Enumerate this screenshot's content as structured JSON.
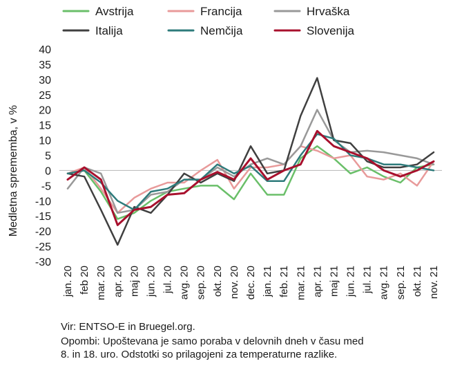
{
  "chart_data": {
    "type": "line",
    "title": "",
    "xlabel": "",
    "ylabel": "Medletna sprememba, v %",
    "ylim": [
      -30,
      40
    ],
    "yticks": [
      40,
      35,
      30,
      25,
      20,
      15,
      10,
      5,
      0,
      -5,
      -10,
      -15,
      -20,
      -25,
      -30
    ],
    "grid": false,
    "legend": "top",
    "categories": [
      "jan. 20",
      "feb 20",
      "mar. 20",
      "apr. 20",
      "maj 20",
      "jun. 20",
      "jul. 20",
      "avg. 20",
      "sep. 20",
      "okt. 20",
      "nov. 20",
      "dec. 20",
      "jan. 21",
      "feb. 21",
      "mar. 21",
      "apr. 21",
      "maj 21",
      "jun. 21",
      "jul. 21",
      "avg. 21",
      "sep. 21",
      "okt. 21",
      "nov. 21"
    ],
    "series": [
      {
        "name": "Avstrija",
        "color": "#6abf69",
        "values": [
          -1,
          0,
          -7,
          -16,
          -14,
          -10,
          -7,
          -6,
          -5,
          -5,
          -9.5,
          -1,
          -8,
          -8,
          4,
          8,
          4,
          -1,
          1,
          -2,
          -4,
          1,
          2
        ]
      },
      {
        "name": "Francija",
        "color": "#e89a9a",
        "values": [
          -1,
          1,
          -6,
          -14,
          -9,
          -6,
          -4,
          -4,
          0,
          3.5,
          -6,
          1,
          1,
          2,
          8,
          6.5,
          4,
          5,
          -2,
          -3,
          -1,
          -5,
          3
        ]
      },
      {
        "name": "Hrvaška",
        "color": "#999999",
        "values": [
          -6,
          1,
          -1,
          -14,
          -13,
          -8,
          -7,
          -3,
          -3,
          1,
          -2,
          2,
          4,
          2,
          8,
          20,
          10,
          6,
          6.5,
          6,
          5,
          4,
          2
        ]
      },
      {
        "name": "Italija",
        "color": "#404040",
        "values": [
          -1,
          -2,
          -13,
          -24.5,
          -12,
          -14,
          -8,
          -1,
          -4,
          -1,
          -3.5,
          8,
          -1,
          0,
          18,
          30.5,
          10,
          9,
          3,
          1,
          1,
          2,
          6
        ]
      },
      {
        "name": "Nemčija",
        "color": "#2e7b7b",
        "values": [
          -1,
          0,
          -4,
          -10,
          -13,
          -7,
          -6,
          -3,
          -3,
          2,
          -1,
          1.5,
          -3.5,
          -3.5,
          5,
          12,
          10.5,
          5,
          4,
          2,
          2,
          1,
          0
        ]
      },
      {
        "name": "Slovenija",
        "color": "#a8102d",
        "values": [
          -3,
          1,
          -3,
          -18,
          -13,
          -12,
          -8,
          -7.5,
          -3,
          -0.5,
          -3,
          4,
          -3,
          0,
          2,
          13,
          8,
          6,
          4,
          0,
          -2,
          0,
          3
        ]
      }
    ]
  },
  "notes": {
    "source": "Vir: ENTSO-E in Bruegel.org.",
    "remarks": "Opombi: Upoštevana je samo poraba v delovnih dneh v času med",
    "remarks2": "8. in 18. uro. Odstotki so prilagojeni za temperaturne razlike."
  }
}
